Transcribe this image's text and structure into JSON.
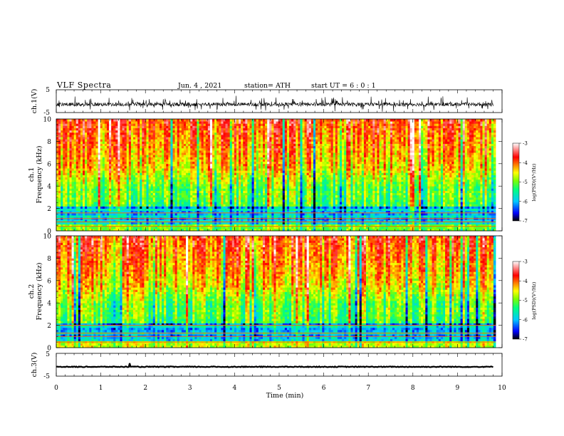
{
  "header": {
    "title": "VLF  Spectra",
    "date": "Jun. 4 , 2021",
    "station": "station= ATH",
    "start": "start  UT  =   6  : 0  : 1"
  },
  "chart_data": [
    {
      "type": "line",
      "panel": "ch1-waveform",
      "ylabel": "ch.1(V)",
      "ylim": [
        -5,
        5
      ],
      "yticks": [
        "5",
        "-5"
      ],
      "xlim": [
        0,
        10
      ],
      "data_extent_min": [
        0,
        9.8
      ],
      "signal": "noisy waveform centered near -1.5 V with spikes up to about +1.5 V and down to about -4 V"
    },
    {
      "type": "heatmap",
      "panel": "ch1-spectrogram",
      "ylabel_lines": [
        "ch.1",
        "Frequency  (kHz)"
      ],
      "ylim": [
        0,
        10
      ],
      "yticks": [
        "0",
        "2",
        "4",
        "6",
        "8",
        "10"
      ],
      "xlim": [
        0,
        10
      ],
      "z_quantity": "log(PSD)(V²/Hz)",
      "z_range": [
        -7,
        -3
      ],
      "colorbar_ticks": [
        "-3",
        "-4",
        "-5",
        "-6",
        "-7"
      ],
      "colorbar_title": "log(PSD)(V²/Hz)"
    },
    {
      "type": "heatmap",
      "panel": "ch2-spectrogram",
      "ylabel_lines": [
        "ch.2",
        "Frequency  (kHz)"
      ],
      "ylim": [
        0,
        10
      ],
      "yticks": [
        "0",
        "2",
        "4",
        "6",
        "8",
        "10"
      ],
      "xlim": [
        0,
        10
      ],
      "z_quantity": "log(PSD)(V²/Hz)",
      "z_range": [
        -7,
        -3
      ],
      "colorbar_ticks": [
        "-3",
        "-4",
        "-5",
        "-6",
        "-7"
      ],
      "colorbar_title": "log(PSD)(V²/Hz)"
    },
    {
      "type": "line",
      "panel": "ch3-waveform",
      "ylabel": "ch.3(V)",
      "ylim": [
        -5,
        5
      ],
      "yticks": [
        "5",
        "-5"
      ],
      "xlim": [
        0,
        10
      ],
      "data_extent_min": [
        0,
        9.8
      ],
      "signal": "nearly flat thick trace near -1 V"
    }
  ],
  "xaxis": {
    "label": "Time  (min)",
    "ticks": [
      "0",
      "1",
      "2",
      "3",
      "4",
      "5",
      "6",
      "7",
      "8",
      "9",
      "10"
    ]
  },
  "colormap": [
    "#000000",
    "#0000ff",
    "#00c8ff",
    "#00ff80",
    "#80ff00",
    "#ffff00",
    "#ff8000",
    "#ff0000",
    "#ffffff"
  ]
}
